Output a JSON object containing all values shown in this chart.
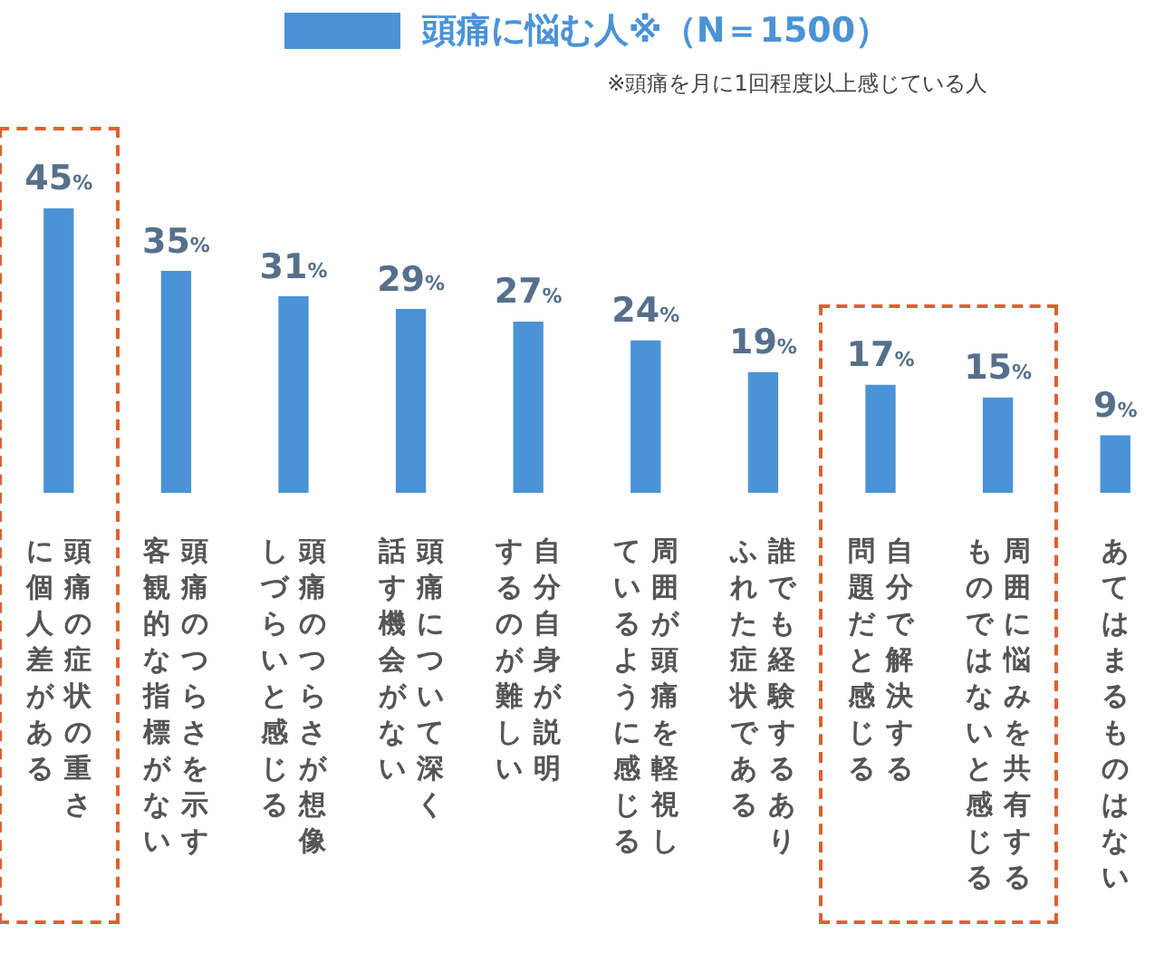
{
  "chart_data": {
    "type": "bar",
    "categories": [
      "頭痛の症状の重さに個人差がある",
      "頭痛のつらさを示す客観的な指標がない",
      "頭痛のつらさが想像しづらいと感じる",
      "頭痛について深く話す機会がない",
      "自分自身が説明するのが難しい",
      "周囲が頭痛を軽視しているように感じる",
      "誰でも経験するありふれた症状である",
      "自分で解決する問題だと感じる",
      "周囲に悩みを共有するものではないと感じる",
      "あてはまるものはない"
    ],
    "series": [
      {
        "name": "頭痛に悩む人※（N＝1500）",
        "color": "#4b93d6",
        "values": [
          45,
          35,
          31,
          29,
          27,
          24,
          19,
          17,
          15,
          9
        ],
        "value_labels": [
          "45%",
          "35%",
          "31%",
          "29%",
          "27%",
          "24%",
          "19%",
          "17%",
          "15%",
          "9%"
        ]
      }
    ],
    "legend": "top",
    "annotations": [
      "※頭痛を月に1回程度以上感じている人"
    ]
  }
}
